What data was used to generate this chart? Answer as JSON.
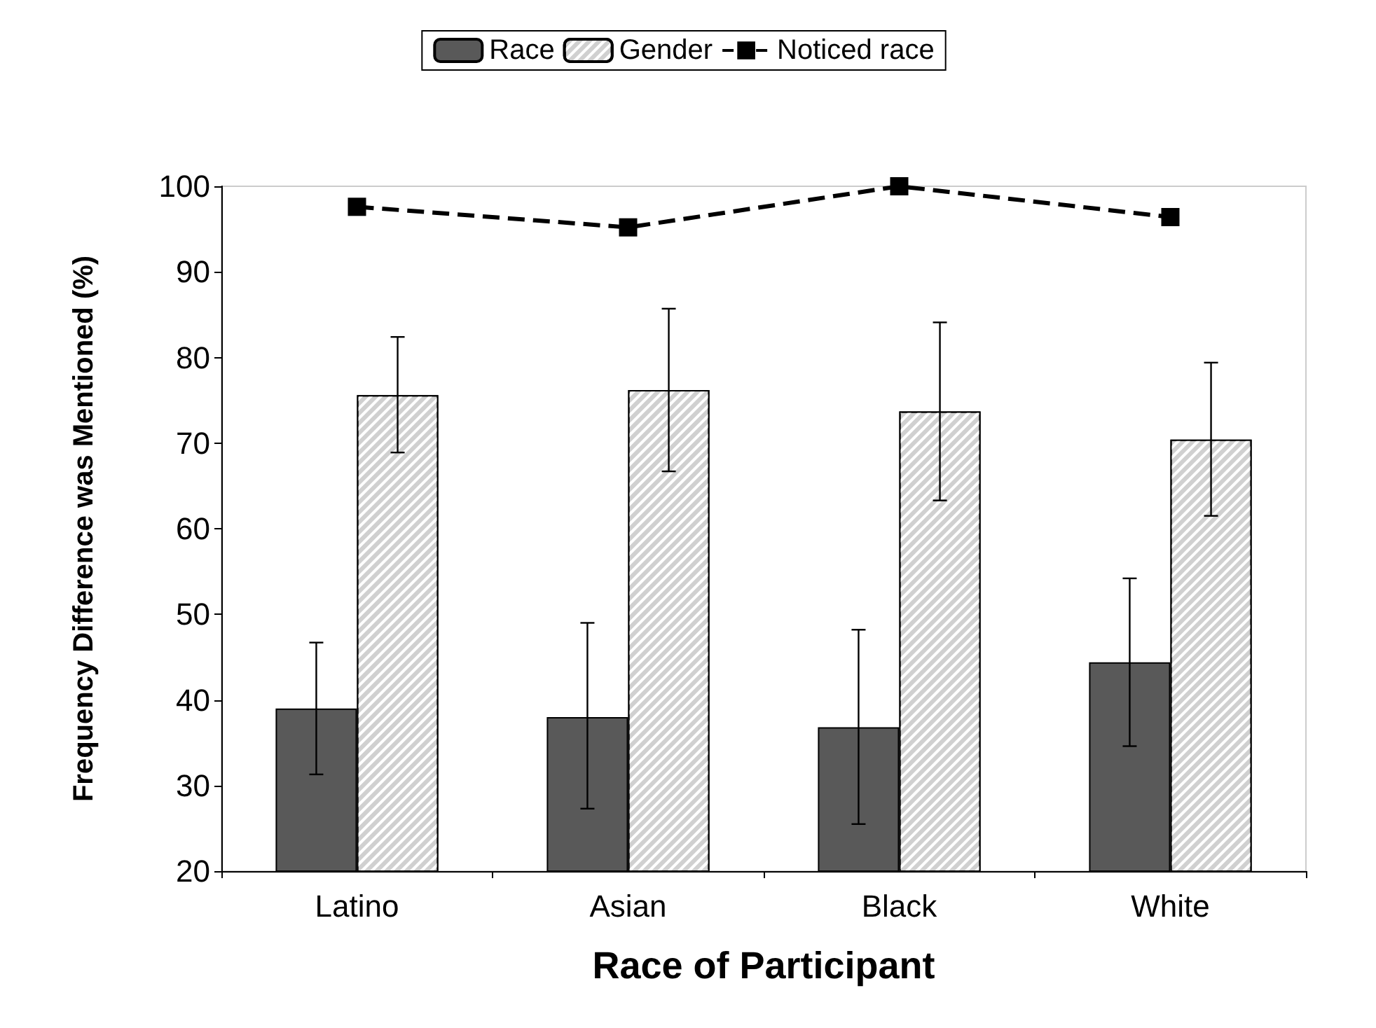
{
  "chart_data": {
    "type": "bar",
    "xlabel": "Race of Participant",
    "ylabel": "Frequency Difference was Mentioned (%)",
    "categories": [
      "Latino",
      "Asian",
      "Black",
      "White"
    ],
    "series": [
      {
        "name": "Race",
        "color": "#595959",
        "values": [
          39,
          38,
          36.8,
          44.4
        ],
        "errors": [
          [
            31.3,
            46.7
          ],
          [
            27.3,
            49
          ],
          [
            25.5,
            48.2
          ],
          [
            34.6,
            54.2
          ]
        ]
      },
      {
        "name": "Gender",
        "color": "#d0d0d0",
        "values": [
          75.6,
          76.2,
          73.7,
          70.4
        ],
        "errors": [
          [
            68.9,
            82.4
          ],
          [
            66.7,
            85.7
          ],
          [
            63.3,
            84.1
          ],
          [
            61.5,
            79.4
          ]
        ]
      },
      {
        "name": "Noticed race",
        "type": "line",
        "color": "#000000",
        "values": [
          97.6,
          95.2,
          100,
          96.4
        ],
        "marker": "square",
        "line_style": "dashed"
      }
    ],
    "ylim": [
      20,
      100
    ],
    "yticks": [
      20,
      30,
      40,
      50,
      60,
      70,
      80,
      90,
      100
    ],
    "grid": false,
    "legend": "top"
  }
}
